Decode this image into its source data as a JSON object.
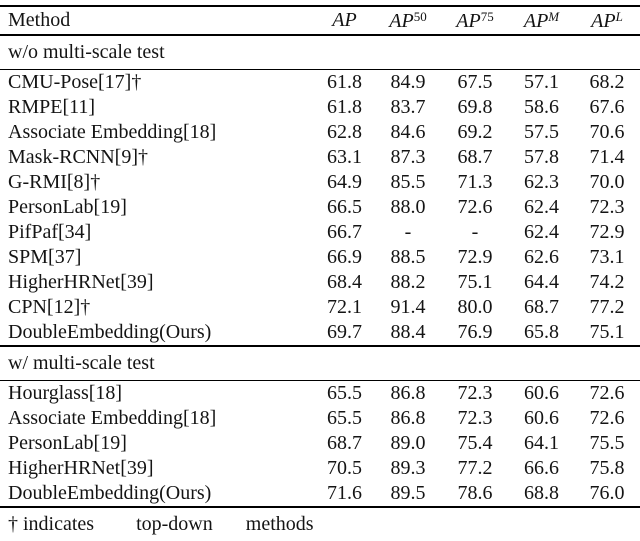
{
  "page": {
    "background": "#ffffff",
    "text_color": "#141414",
    "rule_color": "#000000"
  },
  "table": {
    "header": {
      "method_label": "Method",
      "metric_columns": [
        {
          "base": "AP",
          "sup": "",
          "sup_style": "roman"
        },
        {
          "base": "AP",
          "sup": "50",
          "sup_style": "roman"
        },
        {
          "base": "AP",
          "sup": "75",
          "sup_style": "roman"
        },
        {
          "base": "AP",
          "sup": "M",
          "sup_style": "italic"
        },
        {
          "base": "AP",
          "sup": "L",
          "sup_style": "italic"
        }
      ]
    },
    "sections": [
      {
        "title": "w/o multi-scale test",
        "rows": [
          {
            "method": "CMU-Pose[17]†",
            "values": [
              "61.8",
              "84.9",
              "67.5",
              "57.1",
              "68.2"
            ]
          },
          {
            "method": "RMPE[11]",
            "values": [
              "61.8",
              "83.7",
              "69.8",
              "58.6",
              "67.6"
            ]
          },
          {
            "method": "Associate Embedding[18]",
            "values": [
              "62.8",
              "84.6",
              "69.2",
              "57.5",
              "70.6"
            ]
          },
          {
            "method": "Mask-RCNN[9]†",
            "values": [
              "63.1",
              "87.3",
              "68.7",
              "57.8",
              "71.4"
            ]
          },
          {
            "method": "G-RMI[8]†",
            "values": [
              "64.9",
              "85.5",
              "71.3",
              "62.3",
              "70.0"
            ]
          },
          {
            "method": "PersonLab[19]",
            "values": [
              "66.5",
              "88.0",
              "72.6",
              "62.4",
              "72.3"
            ]
          },
          {
            "method": "PifPaf[34]",
            "values": [
              "66.7",
              "-",
              "-",
              "62.4",
              "72.9"
            ]
          },
          {
            "method": "SPM[37]",
            "values": [
              "66.9",
              "88.5",
              "72.9",
              "62.6",
              "73.1"
            ]
          },
          {
            "method": "HigherHRNet[39]",
            "values": [
              "68.4",
              "88.2",
              "75.1",
              "64.4",
              "74.2"
            ]
          },
          {
            "method": "CPN[12]†",
            "values": [
              "72.1",
              "91.4",
              "80.0",
              "68.7",
              "77.2"
            ]
          },
          {
            "method": "DoubleEmbedding(Ours)",
            "values": [
              "69.7",
              "88.4",
              "76.9",
              "65.8",
              "75.1"
            ]
          }
        ]
      },
      {
        "title": "w/ multi-scale test",
        "rows": [
          {
            "method": "Hourglass[18]",
            "values": [
              "65.5",
              "86.8",
              "72.3",
              "60.6",
              "72.6"
            ]
          },
          {
            "method": "Associate Embedding[18]",
            "values": [
              "65.5",
              "86.8",
              "72.3",
              "60.6",
              "72.6"
            ]
          },
          {
            "method": "PersonLab[19]",
            "values": [
              "68.7",
              "89.0",
              "75.4",
              "64.1",
              "75.5"
            ]
          },
          {
            "method": "HigherHRNet[39]",
            "values": [
              "70.5",
              "89.3",
              "77.2",
              "66.6",
              "75.8"
            ]
          },
          {
            "method": "DoubleEmbedding(Ours)",
            "values": [
              "71.6",
              "89.5",
              "78.6",
              "68.8",
              "76.0"
            ]
          }
        ]
      }
    ],
    "footnote_parts": [
      "† indicates",
      "top-down",
      "methods"
    ]
  }
}
